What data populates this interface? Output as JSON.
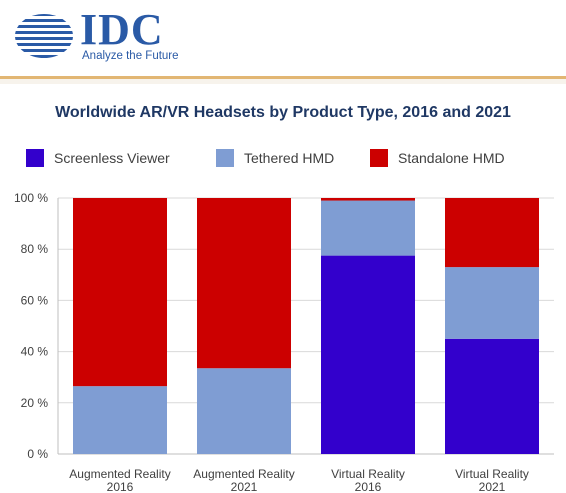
{
  "header": {
    "logo_text": "IDC",
    "tagline": "Analyze the Future",
    "logo_color": "#2a5aa6"
  },
  "chart_data": {
    "type": "bar",
    "stacked": true,
    "title": "Worldwide AR/VR Headsets by Product Type, 2016 and 2021",
    "categories": [
      [
        "Augmented Reality",
        "2016"
      ],
      [
        "Augmented Reality",
        "2021"
      ],
      [
        "Virtual Reality",
        "2016"
      ],
      [
        "Virtual Reality",
        "2021"
      ]
    ],
    "series": [
      {
        "name": "Screenless Viewer",
        "color": "#3300cc",
        "values": [
          0,
          0,
          77.5,
          45
        ]
      },
      {
        "name": "Tethered HMD",
        "color": "#7f9dd3",
        "values": [
          26.5,
          33.5,
          21.5,
          28
        ]
      },
      {
        "name": "Standalone HMD",
        "color": "#cc0000",
        "values": [
          73.5,
          66.5,
          1,
          27
        ]
      }
    ],
    "yticks": [
      "0 %",
      "20 %",
      "40 %",
      "60 %",
      "80 %",
      "100 %"
    ],
    "ylim": [
      0,
      100
    ],
    "grid": true,
    "legend_position": "top"
  }
}
